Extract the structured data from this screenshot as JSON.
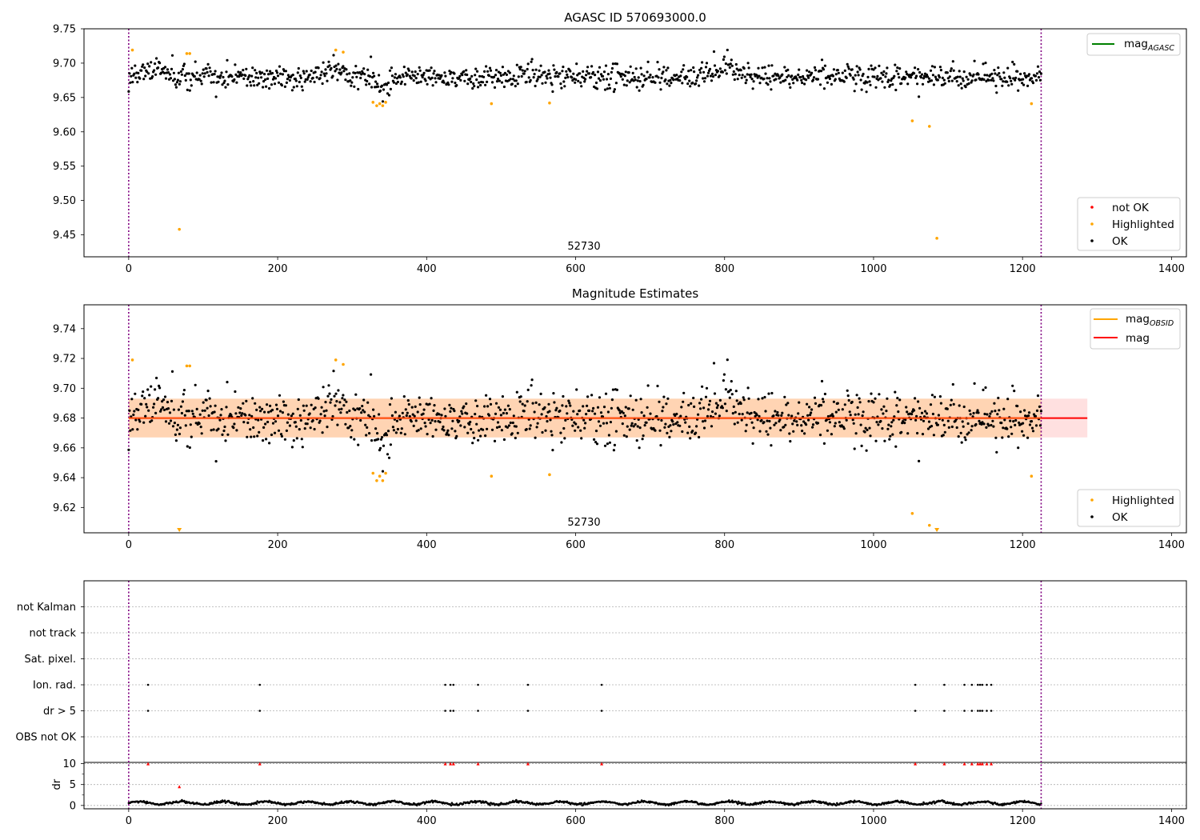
{
  "chart_data": [
    {
      "type": "scatter",
      "title": "AGASC ID 570693000.0",
      "annotation": "52730",
      "xlim": [
        -60,
        1420
      ],
      "ylim": [
        9.418,
        9.75
      ],
      "xticks": [
        0,
        200,
        400,
        600,
        800,
        1000,
        1200,
        1400
      ],
      "yticks": [
        9.45,
        9.5,
        9.55,
        9.6,
        9.65,
        9.7,
        9.75
      ],
      "ytick_labels": [
        "9.45",
        "9.50",
        "9.55",
        "9.60",
        "9.65",
        "9.70",
        "9.75"
      ],
      "vlines": [
        0,
        1225
      ],
      "mag_agasc": 9.68,
      "legend_lines": [
        {
          "label": "mag",
          "sub": "AGASC",
          "color": "#008000"
        }
      ],
      "legend_markers": [
        {
          "label": "not OK",
          "color": "#ff0000"
        },
        {
          "label": "Highlighted",
          "color": "#ffa500"
        },
        {
          "label": "OK",
          "color": "#000000"
        }
      ],
      "highlighted_points": [
        [
          5,
          9.719
        ],
        [
          68,
          9.458
        ],
        [
          78,
          9.714
        ],
        [
          82,
          9.714
        ],
        [
          278,
          9.719
        ],
        [
          288,
          9.716
        ],
        [
          328,
          9.643
        ],
        [
          333,
          9.638
        ],
        [
          337,
          9.641
        ],
        [
          341,
          9.638
        ],
        [
          345,
          9.643
        ],
        [
          487,
          9.641
        ],
        [
          565,
          9.642
        ],
        [
          1052,
          9.616
        ],
        [
          1075,
          9.608
        ],
        [
          1085,
          9.445
        ],
        [
          1212,
          9.641
        ]
      ],
      "ok_series": {
        "x_start": 0,
        "x_end": 1225,
        "count": 1150,
        "baseline": 9.68,
        "features": [
          [
            0,
            80,
            0.012
          ],
          [
            250,
            300,
            0.014
          ],
          [
            320,
            360,
            -0.018
          ],
          [
            560,
            580,
            -0.006
          ],
          [
            760,
            830,
            0.016
          ]
        ],
        "scatter_sd": 0.009
      }
    },
    {
      "type": "scatter",
      "title": "Magnitude Estimates",
      "annotation": "52730",
      "xlim": [
        -60,
        1420
      ],
      "ylim": [
        9.603,
        9.756
      ],
      "xticks": [
        0,
        200,
        400,
        600,
        800,
        1000,
        1200,
        1400
      ],
      "yticks": [
        9.62,
        9.64,
        9.66,
        9.68,
        9.7,
        9.72,
        9.74
      ],
      "ytick_labels": [
        "9.62",
        "9.64",
        "9.66",
        "9.68",
        "9.70",
        "9.72",
        "9.74"
      ],
      "vlines": [
        0,
        1225
      ],
      "mag": 9.68,
      "mag_band": [
        9.667,
        9.693
      ],
      "mag_obsid_band": [
        9.667,
        9.693
      ],
      "band_x": [
        0,
        1287
      ],
      "obs_band_x": [
        0,
        1225
      ],
      "legend_lines": [
        {
          "label": "mag",
          "sub": "OBSID",
          "color": "#ffa500"
        },
        {
          "label": "mag",
          "sub": "",
          "color": "#ff0000"
        }
      ],
      "legend_markers": [
        {
          "label": "Highlighted",
          "color": "#ffa500"
        },
        {
          "label": "OK",
          "color": "#000000"
        }
      ],
      "highlighted_points": [
        [
          5,
          9.719
        ],
        [
          78,
          9.715
        ],
        [
          82,
          9.715
        ],
        [
          278,
          9.719
        ],
        [
          288,
          9.716
        ],
        [
          328,
          9.643
        ],
        [
          333,
          9.638
        ],
        [
          337,
          9.641
        ],
        [
          341,
          9.638
        ],
        [
          345,
          9.643
        ],
        [
          487,
          9.641
        ],
        [
          565,
          9.642
        ],
        [
          1052,
          9.616
        ],
        [
          1075,
          9.608
        ],
        [
          1212,
          9.641
        ]
      ],
      "offscale_markers": [
        68,
        1085
      ],
      "ok_series": {
        "x_start": 0,
        "x_end": 1225,
        "count": 1150,
        "baseline": 9.68,
        "features": [
          [
            0,
            80,
            0.012
          ],
          [
            250,
            300,
            0.014
          ],
          [
            320,
            360,
            -0.018
          ],
          [
            560,
            580,
            -0.006
          ],
          [
            760,
            830,
            0.016
          ]
        ],
        "scatter_sd": 0.009
      }
    },
    {
      "type": "flags",
      "xlim": [
        -60,
        1420
      ],
      "xticks": [
        0,
        200,
        400,
        600,
        800,
        1000,
        1200,
        1400
      ],
      "vlines": [
        0,
        1225
      ],
      "flag_labels": [
        "not Kalman",
        "not track",
        "Sat. pixel.",
        "Ion. rad.",
        "dr > 5",
        "OBS not OK"
      ],
      "flagged_x": {
        "Ion. rad.": [
          26,
          176,
          425,
          432,
          436,
          469,
          536,
          635,
          1056,
          1095,
          1122,
          1132,
          1140,
          1143,
          1146,
          1152,
          1158
        ],
        "dr > 5": [
          26,
          176,
          425,
          432,
          436,
          469,
          536,
          635,
          1056,
          1095,
          1122,
          1132,
          1140,
          1143,
          1146,
          1152,
          1158
        ]
      },
      "dr": {
        "ylabel": "dr",
        "ylim": [
          -0.8,
          10.3
        ],
        "yticks": [
          0,
          5,
          10
        ],
        "ytick_labels": [
          "0",
          "5",
          "10"
        ],
        "red_points": [
          [
            26,
            10
          ],
          [
            68,
            4.5
          ],
          [
            176,
            10
          ],
          [
            425,
            10
          ],
          [
            432,
            10
          ],
          [
            436,
            10
          ],
          [
            469,
            10
          ],
          [
            536,
            10
          ],
          [
            635,
            10
          ],
          [
            1056,
            10
          ],
          [
            1095,
            10
          ],
          [
            1122,
            10
          ],
          [
            1132,
            10
          ],
          [
            1140,
            10
          ],
          [
            1143,
            10
          ],
          [
            1146,
            10
          ],
          [
            1152,
            10
          ],
          [
            1158,
            10
          ]
        ],
        "dark_series": {
          "x_start": 0,
          "x_end": 1225,
          "count": 1150,
          "mean": 0.6
        }
      }
    }
  ]
}
